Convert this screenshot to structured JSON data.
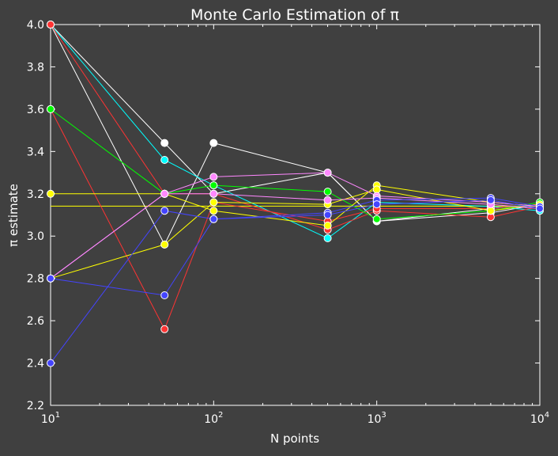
{
  "chart_data": {
    "type": "line",
    "title": "Monte Carlo Estimation of π",
    "xlabel": "N points",
    "ylabel": "π estimate",
    "x_scale": "log",
    "xlim": [
      10,
      10000
    ],
    "ylim": [
      2.2,
      4.0
    ],
    "x_tick_labels": [
      {
        "base": "10",
        "exp": "1",
        "value": 10
      },
      {
        "base": "10",
        "exp": "2",
        "value": 100
      },
      {
        "base": "10",
        "exp": "3",
        "value": 1000
      },
      {
        "base": "10",
        "exp": "4",
        "value": 10000
      }
    ],
    "y_ticks": [
      2.2,
      2.4,
      2.6,
      2.8,
      3.0,
      3.2,
      3.4,
      3.6,
      3.8,
      4.0
    ],
    "y_tick_labels": [
      "2.2",
      "2.4",
      "2.6",
      "2.8",
      "3.0",
      "3.2",
      "3.4",
      "3.6",
      "3.8",
      "4.0"
    ],
    "grid": false,
    "background_color": "#404040",
    "x": [
      10,
      50,
      100,
      500,
      1000,
      5000,
      10000
    ],
    "reference_line": {
      "y": 3.14159,
      "color": "#ffff00"
    },
    "series": [
      {
        "color": "#ffffff",
        "values": [
          4.0,
          2.96,
          3.44,
          3.3,
          3.07,
          3.13,
          3.15
        ]
      },
      {
        "color": "#ffffff",
        "values": [
          4.0,
          3.44,
          3.2,
          3.3,
          3.07,
          3.11,
          3.15
        ]
      },
      {
        "color": "#00ffff",
        "values": [
          4.0,
          3.36,
          3.24,
          2.99,
          3.16,
          3.14,
          3.12
        ]
      },
      {
        "color": "#ff3333",
        "values": [
          4.0,
          3.2,
          3.2,
          3.03,
          3.12,
          3.09,
          3.14
        ]
      },
      {
        "color": "#ff3333",
        "values": [
          3.6,
          2.56,
          3.16,
          3.07,
          3.13,
          3.13,
          3.15
        ]
      },
      {
        "color": "#00ff00",
        "values": [
          3.6,
          3.2,
          3.24,
          3.21,
          3.08,
          3.12,
          3.16
        ]
      },
      {
        "color": "#ffff00",
        "values": [
          3.2,
          3.2,
          3.12,
          3.05,
          3.24,
          3.16,
          3.14
        ]
      },
      {
        "color": "#ffff00",
        "values": [
          2.8,
          2.96,
          3.16,
          3.15,
          3.22,
          3.12,
          3.15
        ]
      },
      {
        "color": "#ff88ff",
        "values": [
          2.8,
          3.2,
          3.28,
          3.3,
          3.19,
          3.16,
          3.14
        ]
      },
      {
        "color": "#ff88ff",
        "values": [
          2.8,
          3.2,
          3.2,
          3.17,
          3.18,
          3.15,
          3.13
        ]
      },
      {
        "color": "#4444ff",
        "values": [
          2.8,
          2.72,
          3.08,
          3.11,
          3.17,
          3.18,
          3.14
        ]
      },
      {
        "color": "#4444ff",
        "values": [
          2.4,
          3.12,
          3.08,
          3.1,
          3.15,
          3.17,
          3.13
        ]
      }
    ]
  }
}
